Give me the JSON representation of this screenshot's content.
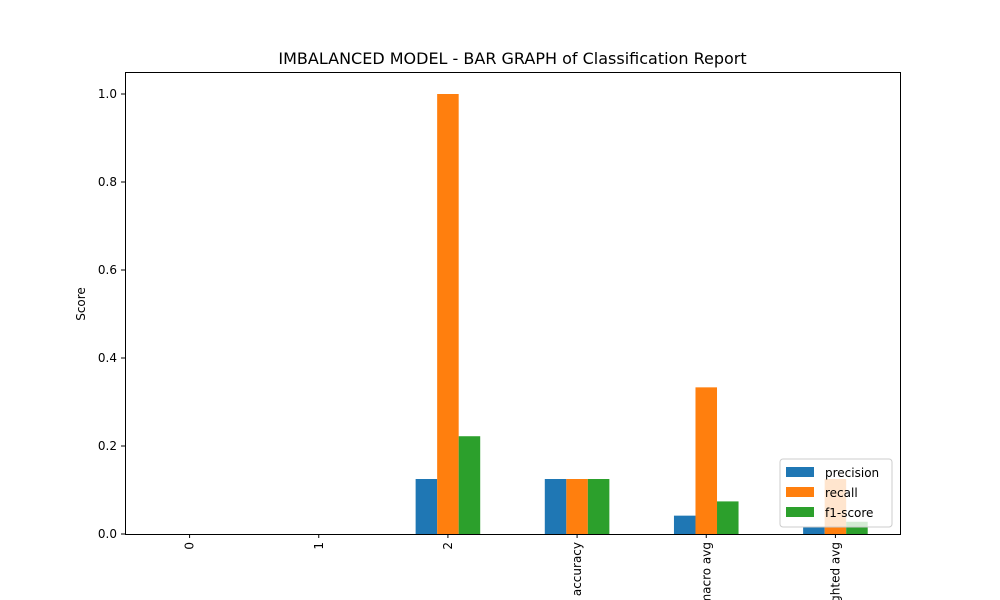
{
  "chart_data": {
    "type": "bar",
    "title": "IMBALANCED MODEL - BAR GRAPH of Classification Report",
    "xlabel": "",
    "ylabel": "Score",
    "categories": [
      "0",
      "1",
      "2",
      "accuracy",
      "macro avg",
      "weighted avg"
    ],
    "series": [
      {
        "name": "precision",
        "color": "#1f77b4",
        "values": [
          0.0,
          0.0,
          0.125,
          0.125,
          0.0417,
          0.0156
        ]
      },
      {
        "name": "recall",
        "color": "#ff7f0e",
        "values": [
          0.0,
          0.0,
          1.0,
          0.125,
          0.3333,
          0.125
        ]
      },
      {
        "name": "f1-score",
        "color": "#2ca02c",
        "values": [
          0.0,
          0.0,
          0.2222,
          0.125,
          0.0741,
          0.0278
        ]
      }
    ],
    "ylim": [
      0,
      1.05
    ],
    "yticks": [
      "0.0",
      "0.2",
      "0.4",
      "0.6",
      "0.8",
      "1.0"
    ],
    "legend_position": "lower-right",
    "grid": false
  }
}
